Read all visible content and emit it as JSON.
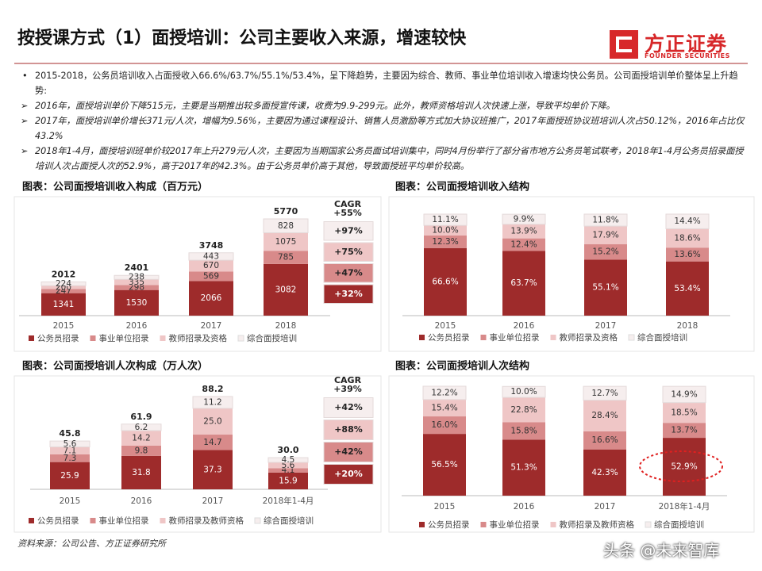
{
  "header": {
    "title": "按授课方式（1）面授培训：公司主要收入来源，增速较快",
    "logo_cn": "方正证券",
    "logo_en": "FOUNDER SECURITIES"
  },
  "bullets": [
    "2015-2018，公务员培训收入占面授收入66.6%/63.7%/55.1%/53.4%，呈下降趋势，主要因为综合、教师、事业单位培训收入增速均快公务员。公司面授培训单价整体呈上升趋势:",
    "2016年，面授培训单价下降515元，主要是当期推出较多面授宣传课，收费为9.9-299元。此外，教师资格培训人次快速上涨，导致平均单价下降。",
    "2017年，面授培训单价增长371元/人次，增幅为9.56%，主要因为通过课程设计、销售人员激励等方式加大协议班推广，2017年面授班协议班培训人次占50.12%，2016年占比仅43.2%",
    "2018年1-4月，面授培训班单价较2017年上升279元/人次，主要因为当期国家公务员面试培训集中，同时4月份举行了部分省市地方公务员笔试联考，2018年1-4月公务员招录面授培训人次占面授人次的52.9%，高于2017年的42.3%。由于公务员单价高于其他，导致面授班平均单价较高。"
  ],
  "chart_data": [
    {
      "type": "stacked_bar",
      "title": "图表：公司面授培训收入构成（百万元）",
      "categories": [
        "2015",
        "2016",
        "2017",
        "2018"
      ],
      "series": [
        {
          "name": "公务员招录",
          "color": "#9e2b2b",
          "values": [
            1341,
            1530,
            2066,
            3082
          ]
        },
        {
          "name": "事业单位招录",
          "color": "#d88a8a",
          "values": [
            247,
            298,
            569,
            785
          ]
        },
        {
          "name": "教师招录及资格",
          "color": "#efc6c6",
          "values": [
            200,
            335,
            670,
            1075
          ]
        },
        {
          "name": "综合面授培训",
          "color": "#f6eeee",
          "values": [
            224,
            238,
            443,
            828
          ]
        }
      ],
      "totals": [
        2012,
        2401,
        3748,
        5770
      ],
      "cagr": {
        "title": "CAGR",
        "values": [
          55,
          97,
          75,
          47,
          32
        ],
        "value_labels": [
          "+55%",
          "+97%",
          "+75%",
          "+47%",
          "+32%"
        ]
      }
    },
    {
      "type": "stacked_bar",
      "title": "图表：公司面授培训收入结构",
      "categories": [
        "2015",
        "2016",
        "2017",
        "2018"
      ],
      "series": [
        {
          "name": "公务员招录",
          "color": "#9e2b2b",
          "values": [
            66.6,
            63.7,
            55.1,
            53.4
          ],
          "value_labels": [
            "66.6%",
            "63.7%",
            "55.1%",
            "53.4%"
          ]
        },
        {
          "name": "事业单位招录",
          "color": "#d88a8a",
          "values": [
            12.3,
            12.4,
            15.2,
            13.6
          ],
          "value_labels": [
            "12.3%",
            "12.4%",
            "15.2%",
            "13.6%"
          ]
        },
        {
          "name": "教师招录及资格",
          "color": "#efc6c6",
          "values": [
            10.0,
            13.9,
            17.9,
            18.6
          ],
          "value_labels": [
            "10.0%",
            "13.9%",
            "17.9%",
            "18.6%"
          ]
        },
        {
          "name": "综合面授培训",
          "color": "#f6eeee",
          "values": [
            11.1,
            9.9,
            11.8,
            14.4
          ],
          "value_labels": [
            "11.1%",
            "9.9%",
            "11.8%",
            "14.4%"
          ]
        }
      ]
    },
    {
      "type": "stacked_bar",
      "title": "图表：公司面授培训人次构成（万人次）",
      "categories": [
        "2015",
        "2016",
        "2017",
        "2018年1-4月"
      ],
      "series": [
        {
          "name": "公务员招录",
          "color": "#9e2b2b",
          "values": [
            25.9,
            31.8,
            37.3,
            15.9
          ]
        },
        {
          "name": "事业单位招录",
          "color": "#d88a8a",
          "values": [
            7.3,
            9.8,
            14.7,
            4.1
          ]
        },
        {
          "name": "教师招录及教师资格",
          "color": "#efc6c6",
          "values": [
            7.1,
            14.2,
            25.0,
            5.6
          ],
          "value_labels": [
            "7.1",
            "14.2",
            "25.0",
            "5.6"
          ]
        },
        {
          "name": "综合面授培训",
          "color": "#f6eeee",
          "values": [
            5.6,
            6.2,
            11.2,
            4.5
          ]
        }
      ],
      "totals": [
        45.8,
        61.9,
        88.2,
        30
      ],
      "totals_labels": [
        "45.8",
        "61.9",
        "88.2",
        "30.0"
      ],
      "cagr": {
        "title": "CAGR",
        "values": [
          39,
          42,
          88,
          42,
          20
        ],
        "value_labels": [
          "+39%",
          "+42%",
          "+88%",
          "+42%",
          "+20%"
        ]
      }
    },
    {
      "type": "stacked_bar",
      "title": "图表：公司面授培训人次结构",
      "categories": [
        "2015",
        "2016",
        "2017",
        "2018年1-4月"
      ],
      "series": [
        {
          "name": "公务员招录",
          "color": "#9e2b2b",
          "values": [
            56.5,
            51.3,
            42.3,
            52.9
          ],
          "value_labels": [
            "56.5%",
            "51.3%",
            "42.3%",
            "52.9%"
          ]
        },
        {
          "name": "事业单位招录",
          "color": "#d88a8a",
          "values": [
            16.0,
            15.8,
            16.6,
            13.7
          ],
          "value_labels": [
            "16.0%",
            "15.8%",
            "16.6%",
            "13.7%"
          ]
        },
        {
          "name": "教师招录及教师资格",
          "color": "#efc6c6",
          "values": [
            15.4,
            22.8,
            28.4,
            18.5
          ],
          "value_labels": [
            "15.4%",
            "22.8%",
            "28.4%",
            "18.5%"
          ]
        },
        {
          "name": "综合面授培训",
          "color": "#f6eeee",
          "values": [
            12.2,
            10.0,
            12.7,
            14.9
          ],
          "value_labels": [
            "12.2%",
            "10.0%",
            "12.7%",
            "14.9%"
          ]
        }
      ]
    }
  ],
  "source": "资料来源：公司公告、方正证券研究所",
  "watermark": "头条 @未来智库"
}
